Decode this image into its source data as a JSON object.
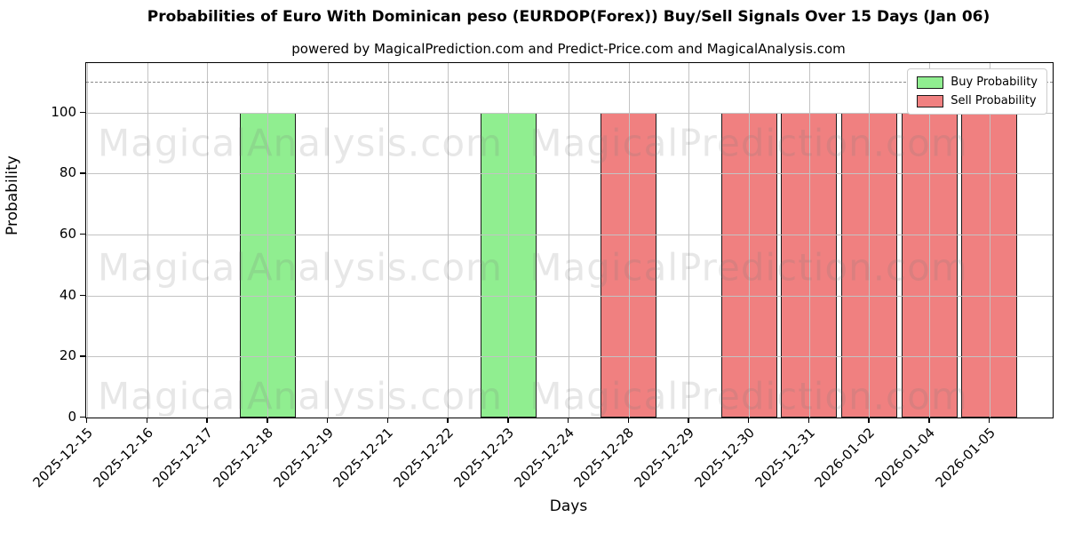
{
  "chart_data": {
    "type": "bar",
    "title": "Probabilities of Euro With Dominican peso (EURDOP(Forex)) Buy/Sell Signals Over 15 Days (Jan 06)",
    "subtitle": "powered by MagicalPrediction.com and Predict-Price.com and MagicalAnalysis.com",
    "xlabel": "Days",
    "ylabel": "Probability",
    "categories": [
      "2025-12-15",
      "2025-12-16",
      "2025-12-17",
      "2025-12-18",
      "2025-12-19",
      "2025-12-21",
      "2025-12-22",
      "2025-12-23",
      "2025-12-24",
      "2025-12-28",
      "2025-12-29",
      "2025-12-30",
      "2025-12-31",
      "2026-01-02",
      "2026-01-04",
      "2026-01-05"
    ],
    "series": [
      {
        "name": "Buy Probability",
        "color": "#90EE90",
        "values": [
          0,
          0,
          0,
          100,
          0,
          0,
          0,
          100,
          0,
          0,
          0,
          0,
          0,
          0,
          0,
          0
        ]
      },
      {
        "name": "Sell Probability",
        "color": "#F08080",
        "values": [
          0,
          0,
          0,
          0,
          0,
          0,
          0,
          0,
          0,
          100,
          0,
          100,
          100,
          100,
          100,
          100
        ]
      }
    ],
    "yticks": [
      0,
      20,
      40,
      60,
      80,
      100
    ],
    "ylim": [
      0,
      116.2
    ],
    "dashed_line_y": 110,
    "grid": "on, drawn above bars",
    "legend_position": "upper right",
    "watermarks": [
      "MagicalAnalysis.com",
      "MagicalPrediction.com"
    ],
    "colors": {
      "buy": "#90EE90",
      "sell": "#F08080",
      "grid": "#c3c3c3",
      "dashed_line": "#8a8a8a",
      "watermark": "rgba(120,120,120,0.18)",
      "bar_edge": "#1a1a1a"
    }
  }
}
